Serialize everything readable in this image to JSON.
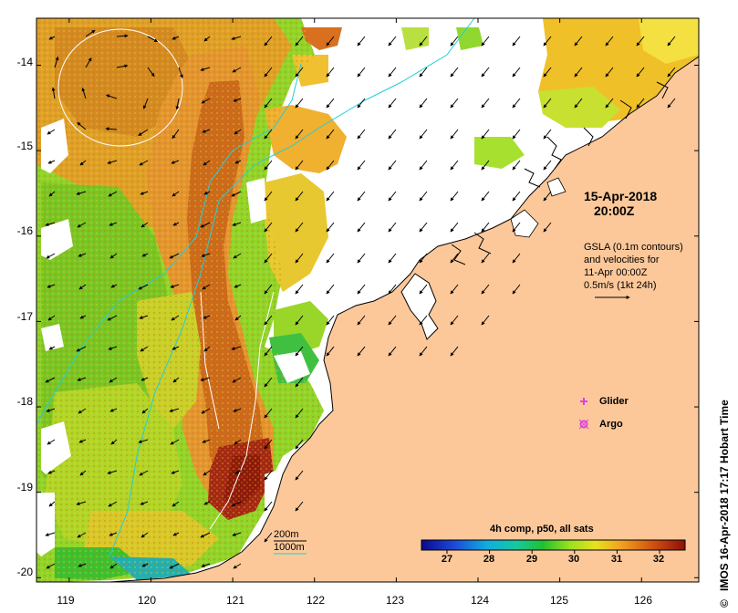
{
  "map": {
    "lat_labels": [
      "-14",
      "-15",
      "-16",
      "-17",
      "-18",
      "-19",
      "-20"
    ],
    "lon_labels": [
      "119",
      "120",
      "121",
      "122",
      "123",
      "124",
      "125",
      "126"
    ],
    "lat_range": [
      -20.05,
      -13.45
    ],
    "lon_range": [
      118.6,
      126.7
    ]
  },
  "annotation": {
    "date": "15-Apr-2018",
    "time": "20:00Z",
    "gsla_lines": [
      "GSLA (0.1m contours)",
      "and velocities for",
      "11-Apr 00:00Z",
      "0.5m/s (1kt 24h)"
    ]
  },
  "legend": {
    "glider": "Glider",
    "argo": "Argo",
    "isobath_200": "200m",
    "isobath_1000": "1000m"
  },
  "colorbar": {
    "title": "4h comp, p50, all sats",
    "ticks": [
      "27",
      "28",
      "29",
      "30",
      "31",
      "32"
    ],
    "min": 26.4,
    "max": 32.6
  },
  "credit": "IMOS 16-Apr-2018 17:17 Hobart Time",
  "colors": {
    "land": "#fcc89a",
    "isobath": "#20d0d8",
    "glider": "#e040e0",
    "argo": "#e040e0"
  }
}
